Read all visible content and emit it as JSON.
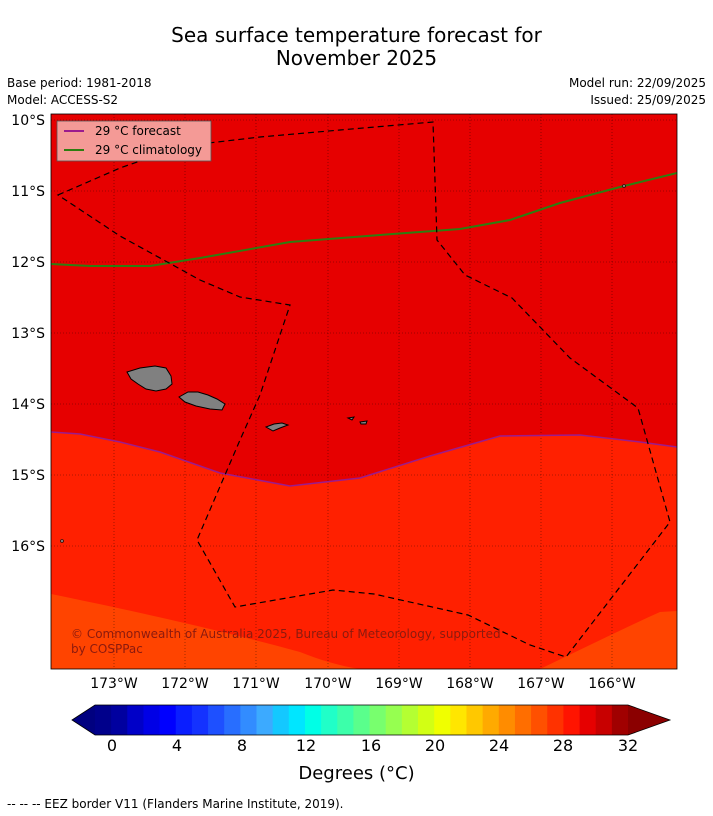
{
  "header": {
    "title_line1": "Sea surface temperature forecast for",
    "title_line2": "November 2025",
    "base_period": "Base period: 1981-2018",
    "model": "Model: ACCESS-S2",
    "model_run": "Model run: 22/09/2025",
    "issued": "Issued: 25/09/2025"
  },
  "legend": {
    "forecast_label": "29 °C  forecast",
    "climatology_label": "29 °C  climatology",
    "forecast_color": "#9b1b8e",
    "climatology_color": "#2e7d10"
  },
  "map": {
    "lon_labels": [
      "173°W",
      "172°W",
      "171°W",
      "170°W",
      "169°W",
      "168°W",
      "167°W",
      "166°W"
    ],
    "lat_labels": [
      "10°S",
      "11°S",
      "12°S",
      "13°S",
      "14°S",
      "15°S",
      "16°S"
    ],
    "copyright_line1": "© Commonwealth of Australia 2025, Bureau of Meteorology, supported",
    "copyright_line2": "by COSPPac",
    "colors": {
      "zone_above_29": "#e60000",
      "zone_28_29": "#ff2000",
      "zone_27_28": "#ff4400",
      "land": "#808080",
      "eez_line": "#000000"
    }
  },
  "colorbar": {
    "tick_labels": [
      "0",
      "4",
      "8",
      "12",
      "16",
      "20",
      "24",
      "28",
      "32"
    ],
    "unit_label": "Degrees (°C)",
    "colors": [
      "#00008b",
      "#00009f",
      "#0000c8",
      "#0000e6",
      "#0000ff",
      "#0a1eff",
      "#1432ff",
      "#1e50ff",
      "#286eff",
      "#328cff",
      "#3caaff",
      "#14c8ff",
      "#00e6ff",
      "#00ffe6",
      "#20ffc8",
      "#3cffaa",
      "#5aff8c",
      "#78ff6e",
      "#96ff50",
      "#b4ff32",
      "#d2ff14",
      "#f0ff00",
      "#ffe600",
      "#ffc800",
      "#ffaa00",
      "#ff8c00",
      "#ff6e00",
      "#ff5000",
      "#ff3200",
      "#ff1400",
      "#e60000",
      "#c80000",
      "#a00000"
    ],
    "under_color": "#000080",
    "over_color": "#8b0000"
  },
  "footer": {
    "eez_note": "--  --  -- EEZ border V11 (Flanders Marine Institute, 2019)."
  }
}
